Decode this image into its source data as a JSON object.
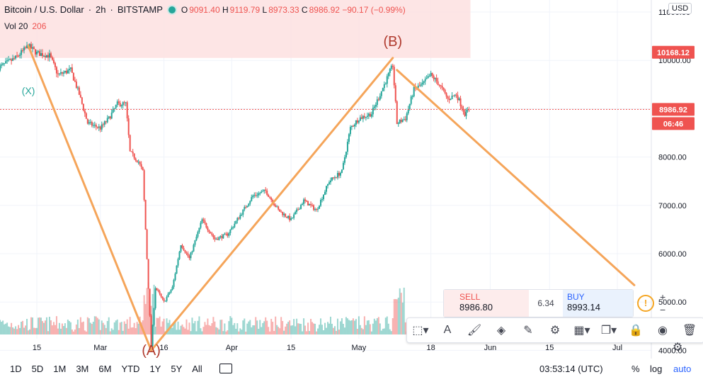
{
  "header": {
    "title": "Bitcoin / U.S. Dollar",
    "interval": "2h",
    "exchange": "BITSTAMP",
    "open_label": "O",
    "open": "9091.40",
    "high_label": "H",
    "high": "9119.79",
    "low_label": "L",
    "low": "8973.33",
    "close_label": "C",
    "close": "8986.92",
    "change": "−90.17 (−0.99%)",
    "volume_label": "Vol 20",
    "volume": "206"
  },
  "currency": "USD",
  "trade_panel": {
    "sell_label": "SELL",
    "sell_price": "8986.80",
    "spread": "6.34",
    "buy_label": "BUY",
    "buy_price": "8993.14",
    "warning_icon": "exclamation-icon"
  },
  "toolbar_icons": [
    "rectangle-select-icon",
    "text-icon",
    "fill-color-icon",
    "background-color-icon",
    "pencil-icon",
    "settings-icon",
    "layers-icon",
    "copy-icon",
    "lock-icon",
    "eye-icon",
    "trash-icon"
  ],
  "timeframes": [
    "1D",
    "5D",
    "1M",
    "3M",
    "6M",
    "YTD",
    "1Y",
    "5Y",
    "All"
  ],
  "footer": {
    "clock": "03:53:14 (UTC)",
    "percent": "%",
    "log": "log",
    "auto": "auto"
  },
  "colors": {
    "up": "#26a69a",
    "down": "#ef5350",
    "wave": "#f5a55a",
    "label": "#b03a2e",
    "highlight": "#fde0e0"
  },
  "chart_data": {
    "type": "candlestick",
    "title": "Bitcoin / U.S. Dollar, 2h, BITSTAMP",
    "xlabel": "",
    "ylabel": "",
    "x_tick_labels": [
      "15",
      "Mar",
      "16",
      "Apr",
      "15",
      "May",
      "18",
      "Jun",
      "15",
      "Jul"
    ],
    "y_tick_labels": [
      "4000.00",
      "5000.00",
      "6000.00",
      "7000.00",
      "8000.00",
      "9000.00",
      "10000.00",
      "11000.00"
    ],
    "ylim": [
      3830,
      11250
    ],
    "grid": true,
    "last_price": "8986.92",
    "countdown": "06:46",
    "marked_level": "10168.12",
    "price_path": [
      [
        "2020-02-06",
        9850
      ],
      [
        "2020-02-10",
        10050
      ],
      [
        "2020-02-13",
        10300
      ],
      [
        "2020-02-15",
        10150
      ],
      [
        "2020-02-18",
        10100
      ],
      [
        "2020-02-20",
        9700
      ],
      [
        "2020-02-23",
        9800
      ],
      [
        "2020-02-25",
        9300
      ],
      [
        "2020-02-27",
        8700
      ],
      [
        "2020-03-01",
        8600
      ],
      [
        "2020-03-03",
        8800
      ],
      [
        "2020-03-05",
        9100
      ],
      [
        "2020-03-07",
        9100
      ],
      [
        "2020-03-08",
        8100
      ],
      [
        "2020-03-10",
        7900
      ],
      [
        "2020-03-11",
        7700
      ],
      [
        "2020-03-12",
        5900
      ],
      [
        "2020-03-13",
        4100
      ],
      [
        "2020-03-14",
        5300
      ],
      [
        "2020-03-16",
        5000
      ],
      [
        "2020-03-18",
        5300
      ],
      [
        "2020-03-20",
        6200
      ],
      [
        "2020-03-22",
        5900
      ],
      [
        "2020-03-25",
        6700
      ],
      [
        "2020-03-28",
        6300
      ],
      [
        "2020-03-31",
        6400
      ],
      [
        "2020-04-03",
        6800
      ],
      [
        "2020-04-06",
        7200
      ],
      [
        "2020-04-09",
        7300
      ],
      [
        "2020-04-12",
        6900
      ],
      [
        "2020-04-15",
        6700
      ],
      [
        "2020-04-18",
        7100
      ],
      [
        "2020-04-21",
        6900
      ],
      [
        "2020-04-24",
        7500
      ],
      [
        "2020-04-27",
        7700
      ],
      [
        "2020-04-29",
        8600
      ],
      [
        "2020-05-01",
        8800
      ],
      [
        "2020-05-04",
        8900
      ],
      [
        "2020-05-07",
        9500
      ],
      [
        "2020-05-09",
        9900
      ],
      [
        "2020-05-10",
        8700
      ],
      [
        "2020-05-12",
        8800
      ],
      [
        "2020-05-14",
        9400
      ],
      [
        "2020-05-16",
        9500
      ],
      [
        "2020-05-18",
        9700
      ],
      [
        "2020-05-20",
        9500
      ],
      [
        "2020-05-22",
        9200
      ],
      [
        "2020-05-24",
        9300
      ],
      [
        "2020-05-26",
        8900
      ],
      [
        "2020-05-27",
        8987
      ]
    ],
    "wave_lines": [
      {
        "from": [
          "2020-02-13",
          10300
        ],
        "to": [
          "2020-03-13",
          4000
        ]
      },
      {
        "from": [
          "2020-03-13",
          4000
        ],
        "to": [
          "2020-05-09",
          10050
        ]
      },
      {
        "from": [
          "2020-05-10",
          9800
        ],
        "to": [
          "2020-07-05",
          5350
        ]
      }
    ],
    "annotations": [
      {
        "text": "(X)",
        "x": "2020-02-13",
        "y": 9300
      },
      {
        "text": "(A)",
        "x": "2020-03-13",
        "y": 3900
      },
      {
        "text": "(B)",
        "x": "2020-05-09",
        "y": 10300
      }
    ]
  }
}
